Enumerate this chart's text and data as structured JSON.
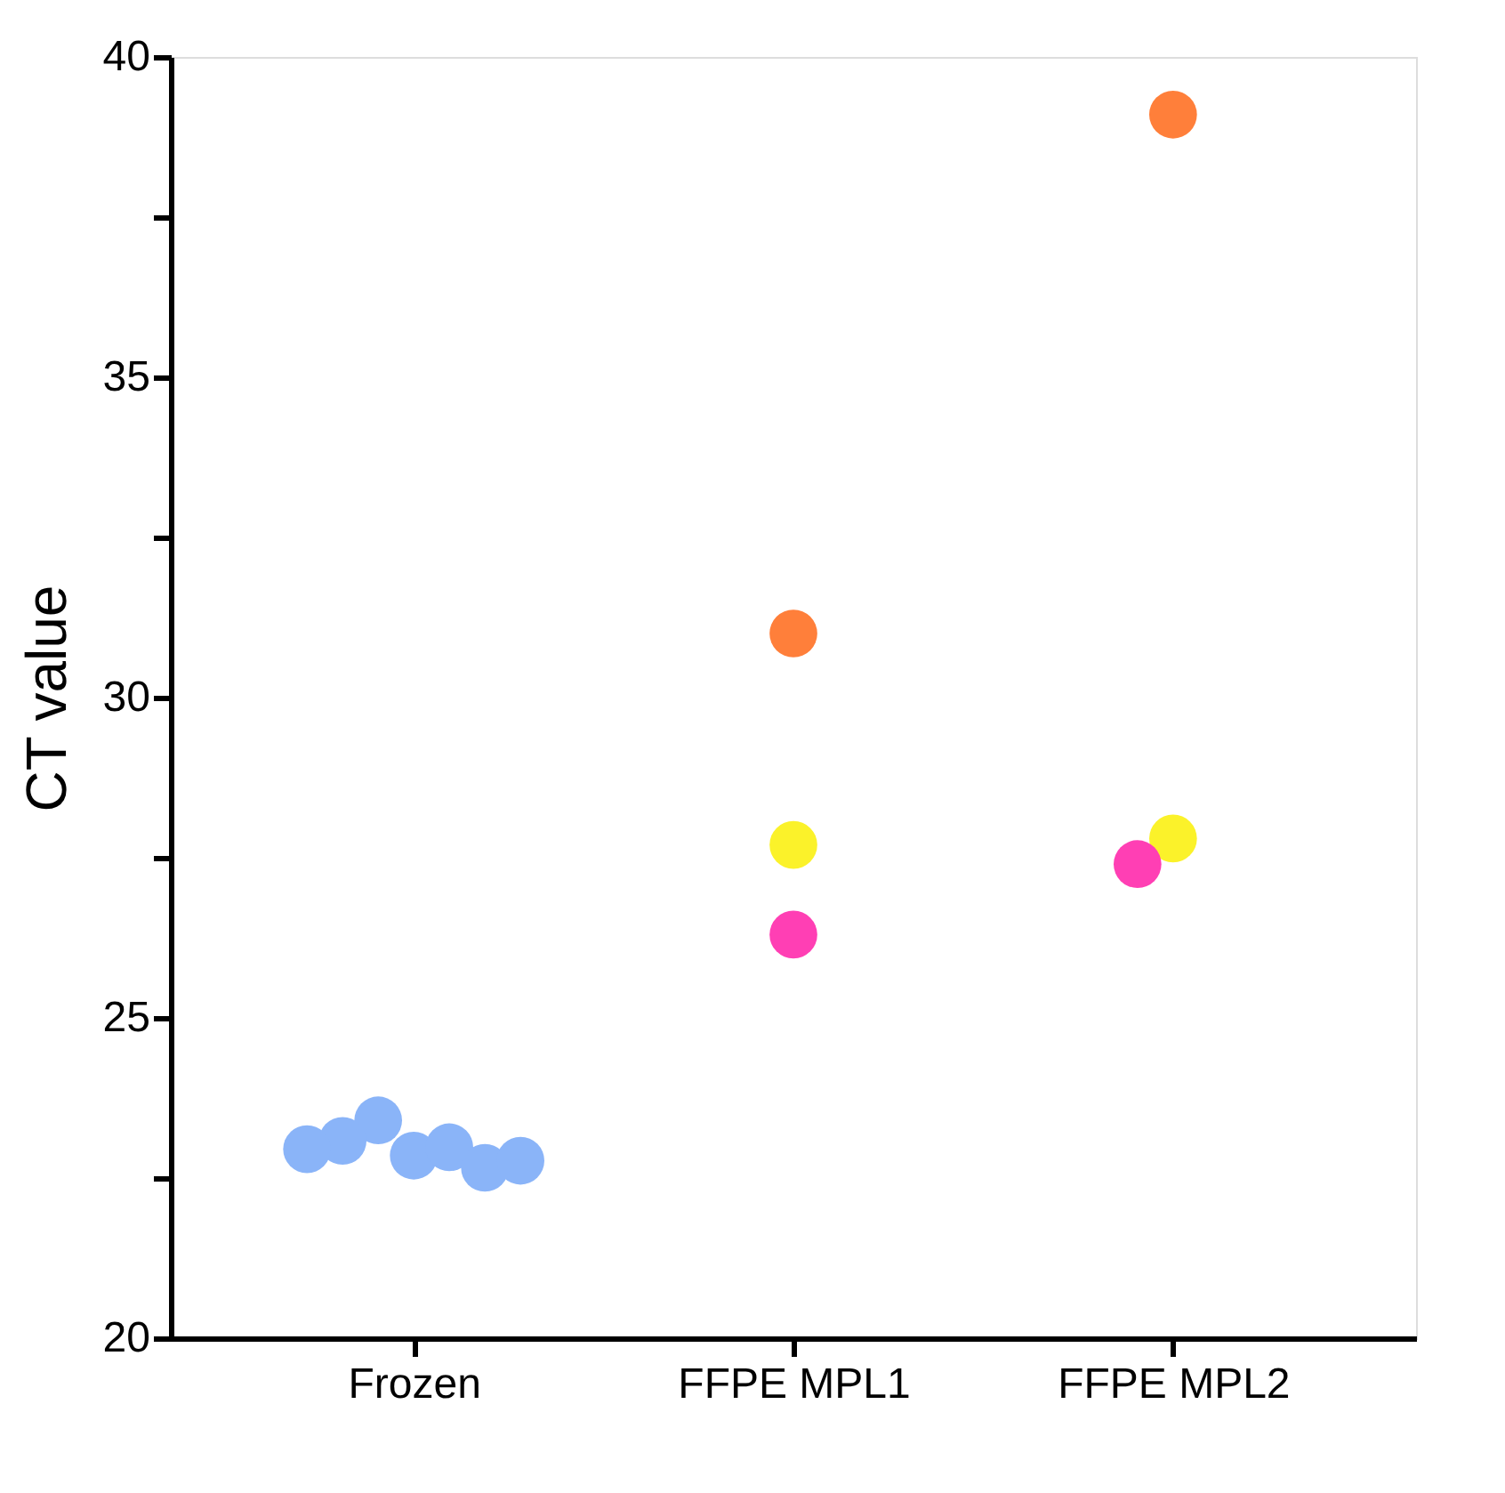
{
  "chart_data": {
    "type": "scatter",
    "ylabel": "CT value",
    "categories": [
      "Frozen",
      "FFPE MPL1",
      "FFPE MPL2"
    ],
    "series": [
      {
        "color": "#8ab4f8",
        "x": [
          "Frozen",
          "Frozen",
          "Frozen",
          "Frozen",
          "Frozen",
          "Frozen",
          "Frozen"
        ],
        "values": [
          22.85,
          23.4,
          22.98,
          23.08,
          22.66,
          22.95,
          22.77
        ]
      },
      {
        "color": "#ff7f3a",
        "x": [
          "FFPE MPL1",
          "FFPE MPL2"
        ],
        "values": [
          31.0,
          39.1
        ]
      },
      {
        "color": "#fbf22a",
        "x": [
          "FFPE MPL1",
          "FFPE MPL2"
        ],
        "values": [
          27.7,
          27.8
        ]
      },
      {
        "color": "#ff3fb4",
        "x": [
          "FFPE MPL1",
          "FFPE MPL2"
        ],
        "values": [
          26.3,
          27.4
        ]
      }
    ],
    "ylim": [
      20,
      40
    ],
    "yticks": [
      20,
      {
        "value": 22.5,
        "label": null
      },
      25,
      {
        "value": 27.5,
        "label": null
      },
      30,
      {
        "value": 32.5,
        "label": null
      },
      35,
      {
        "value": 37.5,
        "label": null
      },
      40
    ],
    "marker": "circle",
    "grid": false,
    "legend": false
  }
}
